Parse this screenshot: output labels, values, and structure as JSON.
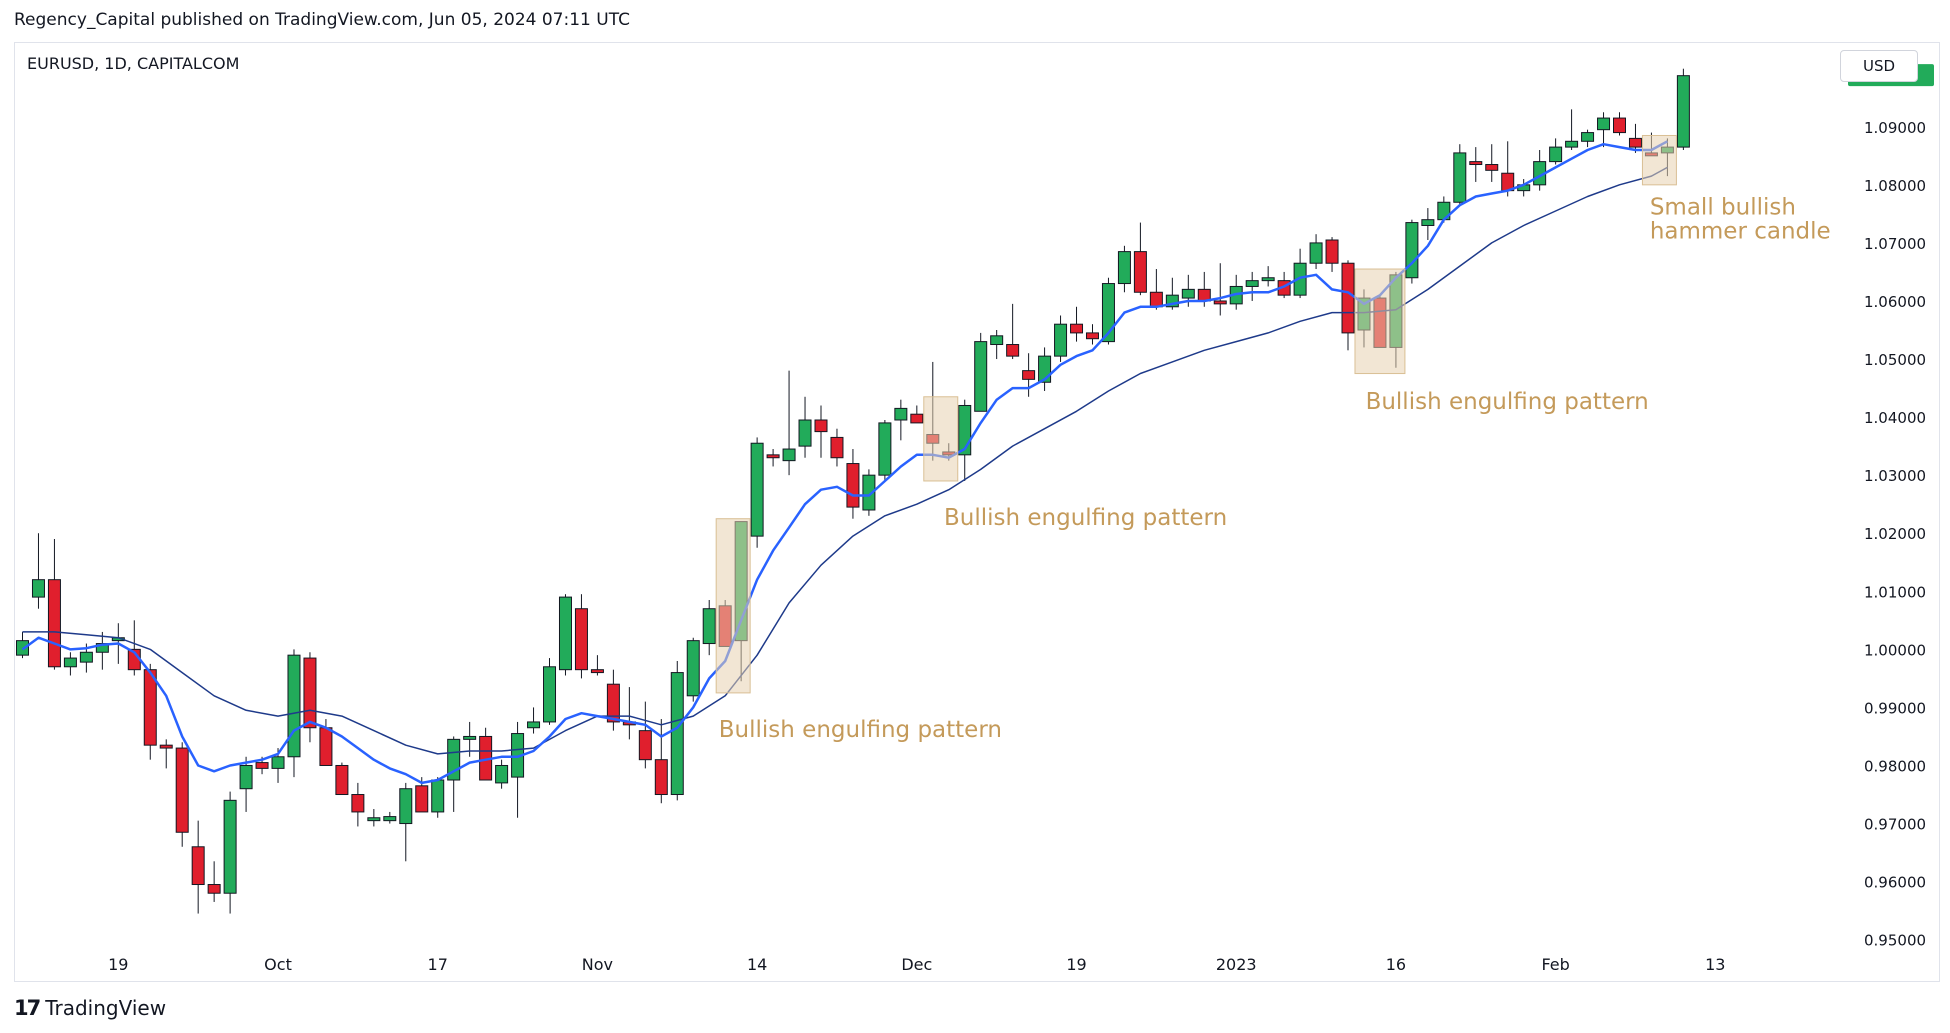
{
  "header": {
    "publisher_line": "Regency_Capital published on TradingView.com, Jun 05, 2024 07:11 UTC"
  },
  "chart_header": {
    "symbol": "EURUSD, 1D, CAPITALCOM",
    "currency": "USD"
  },
  "footer": {
    "logo_icon": "tradingview-logo-icon",
    "logo_text": "TradingView"
  },
  "chart_data": {
    "type": "candlestick",
    "symbol": "EURUSD",
    "timeframe": "1D",
    "y_axis": {
      "range": [
        0.9465,
        1.1015
      ],
      "ticks": [
        "0.95000",
        "0.96000",
        "0.97000",
        "0.98000",
        "0.99000",
        "1.00000",
        "1.01000",
        "1.02000",
        "1.03000",
        "1.04000",
        "1.05000",
        "1.06000",
        "1.07000",
        "1.08000",
        "1.09000"
      ],
      "last_price": "1.09889",
      "last_price_color": "#22ab5a"
    },
    "x_axis": {
      "ticks": [
        {
          "label": "19",
          "bar": 6
        },
        {
          "label": "Oct",
          "bar": 16
        },
        {
          "label": "17",
          "bar": 26
        },
        {
          "label": "Nov",
          "bar": 36
        },
        {
          "label": "14",
          "bar": 46
        },
        {
          "label": "Dec",
          "bar": 56
        },
        {
          "label": "19",
          "bar": 66
        },
        {
          "label": "2023",
          "bar": 76
        },
        {
          "label": "16",
          "bar": 86
        },
        {
          "label": "Feb",
          "bar": 96
        },
        {
          "label": "13",
          "bar": 106
        }
      ]
    },
    "colors": {
      "up": "#22ab5a",
      "down": "#e01f2d",
      "wick": "#131722",
      "ema_fast": "#2962ff",
      "ema_slow": "#1e3a8a",
      "annotation_text": "#c49a5a",
      "annotation_box": "#e8d2b0"
    },
    "candles": [
      {
        "o": 0.999,
        "h": 1.003,
        "l": 0.9985,
        "c": 1.0015
      },
      {
        "o": 1.009,
        "h": 1.02,
        "l": 1.007,
        "c": 1.012
      },
      {
        "o": 1.012,
        "h": 1.019,
        "l": 0.9965,
        "c": 0.997
      },
      {
        "o": 0.997,
        "h": 0.9995,
        "l": 0.9955,
        "c": 0.9985
      },
      {
        "o": 0.9978,
        "h": 1.001,
        "l": 0.996,
        "c": 0.9995
      },
      {
        "o": 0.9995,
        "h": 1.003,
        "l": 0.9965,
        "c": 1.001
      },
      {
        "o": 1.0015,
        "h": 1.0045,
        "l": 0.9975,
        "c": 1.002
      },
      {
        "o": 1.0,
        "h": 1.005,
        "l": 0.9955,
        "c": 0.9965
      },
      {
        "o": 0.9965,
        "h": 0.9975,
        "l": 0.981,
        "c": 0.9835
      },
      {
        "o": 0.9835,
        "h": 0.9845,
        "l": 0.9795,
        "c": 0.983
      },
      {
        "o": 0.983,
        "h": 0.984,
        "l": 0.966,
        "c": 0.9685
      },
      {
        "o": 0.966,
        "h": 0.9705,
        "l": 0.9545,
        "c": 0.9595
      },
      {
        "o": 0.9595,
        "h": 0.9635,
        "l": 0.9565,
        "c": 0.958
      },
      {
        "o": 0.958,
        "h": 0.9755,
        "l": 0.9545,
        "c": 0.974
      },
      {
        "o": 0.976,
        "h": 0.9815,
        "l": 0.972,
        "c": 0.98
      },
      {
        "o": 0.9805,
        "h": 0.9815,
        "l": 0.9785,
        "c": 0.9795
      },
      {
        "o": 0.9795,
        "h": 0.983,
        "l": 0.977,
        "c": 0.9815
      },
      {
        "o": 0.9815,
        "h": 1.0,
        "l": 0.978,
        "c": 0.999
      },
      {
        "o": 0.9985,
        "h": 0.9995,
        "l": 0.984,
        "c": 0.9865
      },
      {
        "o": 0.9865,
        "h": 0.988,
        "l": 0.9805,
        "c": 0.98
      },
      {
        "o": 0.98,
        "h": 0.9805,
        "l": 0.975,
        "c": 0.975
      },
      {
        "o": 0.975,
        "h": 0.977,
        "l": 0.9695,
        "c": 0.972
      },
      {
        "o": 0.9705,
        "h": 0.9725,
        "l": 0.9695,
        "c": 0.971
      },
      {
        "o": 0.9705,
        "h": 0.972,
        "l": 0.97,
        "c": 0.9712
      },
      {
        "o": 0.97,
        "h": 0.977,
        "l": 0.9635,
        "c": 0.976
      },
      {
        "o": 0.9765,
        "h": 0.978,
        "l": 0.972,
        "c": 0.972
      },
      {
        "o": 0.972,
        "h": 0.978,
        "l": 0.971,
        "c": 0.9775
      },
      {
        "o": 0.9775,
        "h": 0.985,
        "l": 0.972,
        "c": 0.9845
      },
      {
        "o": 0.9845,
        "h": 0.9875,
        "l": 0.9815,
        "c": 0.985
      },
      {
        "o": 0.985,
        "h": 0.9865,
        "l": 0.978,
        "c": 0.9775
      },
      {
        "o": 0.977,
        "h": 0.981,
        "l": 0.976,
        "c": 0.98
      },
      {
        "o": 0.978,
        "h": 0.9875,
        "l": 0.971,
        "c": 0.9855
      },
      {
        "o": 0.9865,
        "h": 0.99,
        "l": 0.9855,
        "c": 0.9875
      },
      {
        "o": 0.9875,
        "h": 0.9985,
        "l": 0.987,
        "c": 0.997
      },
      {
        "o": 0.9965,
        "h": 1.0095,
        "l": 0.9955,
        "c": 1.009
      },
      {
        "o": 1.007,
        "h": 1.0095,
        "l": 0.995,
        "c": 0.9965
      },
      {
        "o": 0.9965,
        "h": 0.999,
        "l": 0.9955,
        "c": 0.996
      },
      {
        "o": 0.994,
        "h": 0.9965,
        "l": 0.986,
        "c": 0.9875
      },
      {
        "o": 0.9875,
        "h": 0.9935,
        "l": 0.9845,
        "c": 0.987
      },
      {
        "o": 0.986,
        "h": 0.991,
        "l": 0.9795,
        "c": 0.981
      },
      {
        "o": 0.981,
        "h": 0.988,
        "l": 0.9735,
        "c": 0.975
      },
      {
        "o": 0.975,
        "h": 0.998,
        "l": 0.974,
        "c": 0.996
      },
      {
        "o": 0.992,
        "h": 1.002,
        "l": 0.991,
        "c": 1.0015
      },
      {
        "o": 1.001,
        "h": 1.0085,
        "l": 0.999,
        "c": 1.007
      },
      {
        "o": 1.0075,
        "h": 1.0085,
        "l": 1.0005,
        "c": 1.0005
      },
      {
        "o": 1.0015,
        "h": 1.022,
        "l": 0.9945,
        "c": 1.022
      },
      {
        "o": 1.0195,
        "h": 1.0365,
        "l": 1.0175,
        "c": 1.0355
      },
      {
        "o": 1.0335,
        "h": 1.0345,
        "l": 1.0315,
        "c": 1.033
      },
      {
        "o": 1.0325,
        "h": 1.048,
        "l": 1.03,
        "c": 1.0345
      },
      {
        "o": 1.035,
        "h": 1.0435,
        "l": 1.033,
        "c": 1.0395
      },
      {
        "o": 1.0395,
        "h": 1.042,
        "l": 1.033,
        "c": 1.0375
      },
      {
        "o": 1.0365,
        "h": 1.038,
        "l": 1.0315,
        "c": 1.033
      },
      {
        "o": 1.032,
        "h": 1.0345,
        "l": 1.0225,
        "c": 1.0245
      },
      {
        "o": 1.024,
        "h": 1.031,
        "l": 1.023,
        "c": 1.03
      },
      {
        "o": 1.03,
        "h": 1.0395,
        "l": 1.029,
        "c": 1.039
      },
      {
        "o": 1.0395,
        "h": 1.043,
        "l": 1.036,
        "c": 1.0415
      },
      {
        "o": 1.0405,
        "h": 1.042,
        "l": 1.039,
        "c": 1.039
      },
      {
        "o": 1.037,
        "h": 1.0495,
        "l": 1.0325,
        "c": 1.0355
      },
      {
        "o": 1.034,
        "h": 1.0355,
        "l": 1.0325,
        "c": 1.0335
      },
      {
        "o": 1.0335,
        "h": 1.043,
        "l": 1.029,
        "c": 1.042
      },
      {
        "o": 1.041,
        "h": 1.0545,
        "l": 1.041,
        "c": 1.053
      },
      {
        "o": 1.0525,
        "h": 1.055,
        "l": 1.05,
        "c": 1.054
      },
      {
        "o": 1.0525,
        "h": 1.0595,
        "l": 1.05,
        "c": 1.0505
      },
      {
        "o": 1.048,
        "h": 1.051,
        "l": 1.0435,
        "c": 1.0465
      },
      {
        "o": 1.046,
        "h": 1.052,
        "l": 1.0445,
        "c": 1.0505
      },
      {
        "o": 1.0505,
        "h": 1.0575,
        "l": 1.0495,
        "c": 1.056
      },
      {
        "o": 1.056,
        "h": 1.059,
        "l": 1.053,
        "c": 1.0545
      },
      {
        "o": 1.0545,
        "h": 1.056,
        "l": 1.0525,
        "c": 1.0535
      },
      {
        "o": 1.053,
        "h": 1.064,
        "l": 1.0525,
        "c": 1.063
      },
      {
        "o": 1.063,
        "h": 1.0695,
        "l": 1.0615,
        "c": 1.0685
      },
      {
        "o": 1.0685,
        "h": 1.0735,
        "l": 1.061,
        "c": 1.0615
      },
      {
        "o": 1.0615,
        "h": 1.0655,
        "l": 1.0585,
        "c": 1.059
      },
      {
        "o": 1.059,
        "h": 1.064,
        "l": 1.0585,
        "c": 1.061
      },
      {
        "o": 1.0605,
        "h": 1.0645,
        "l": 1.059,
        "c": 1.062
      },
      {
        "o": 1.062,
        "h": 1.065,
        "l": 1.059,
        "c": 1.06
      },
      {
        "o": 1.06,
        "h": 1.0665,
        "l": 1.0575,
        "c": 1.0595
      },
      {
        "o": 1.0595,
        "h": 1.0645,
        "l": 1.0585,
        "c": 1.0625
      },
      {
        "o": 1.0625,
        "h": 1.065,
        "l": 1.06,
        "c": 1.0635
      },
      {
        "o": 1.0635,
        "h": 1.066,
        "l": 1.0625,
        "c": 1.064
      },
      {
        "o": 1.0635,
        "h": 1.065,
        "l": 1.0605,
        "c": 1.061
      },
      {
        "o": 1.061,
        "h": 1.069,
        "l": 1.0605,
        "c": 1.0665
      },
      {
        "o": 1.0665,
        "h": 1.0715,
        "l": 1.0655,
        "c": 1.07
      },
      {
        "o": 1.0705,
        "h": 1.071,
        "l": 1.065,
        "c": 1.0665
      },
      {
        "o": 1.0665,
        "h": 1.067,
        "l": 1.0515,
        "c": 1.0545
      },
      {
        "o": 1.055,
        "h": 1.062,
        "l": 1.052,
        "c": 1.0605
      },
      {
        "o": 1.0605,
        "h": 1.061,
        "l": 1.0525,
        "c": 1.052
      },
      {
        "o": 1.052,
        "h": 1.065,
        "l": 1.0485,
        "c": 1.0645
      },
      {
        "o": 1.064,
        "h": 1.074,
        "l": 1.063,
        "c": 1.0735
      },
      {
        "o": 1.073,
        "h": 1.076,
        "l": 1.0705,
        "c": 1.074
      },
      {
        "o": 1.074,
        "h": 1.078,
        "l": 1.0735,
        "c": 1.077
      },
      {
        "o": 1.077,
        "h": 1.087,
        "l": 1.0765,
        "c": 1.0855
      },
      {
        "o": 1.084,
        "h": 1.0865,
        "l": 1.0805,
        "c": 1.0835
      },
      {
        "o": 1.0835,
        "h": 1.087,
        "l": 1.0805,
        "c": 1.0825
      },
      {
        "o": 1.082,
        "h": 1.0875,
        "l": 1.078,
        "c": 1.079
      },
      {
        "o": 1.079,
        "h": 1.081,
        "l": 1.078,
        "c": 1.08
      },
      {
        "o": 1.08,
        "h": 1.086,
        "l": 1.079,
        "c": 1.084
      },
      {
        "o": 1.084,
        "h": 1.088,
        "l": 1.0835,
        "c": 1.0865
      },
      {
        "o": 1.0865,
        "h": 1.093,
        "l": 1.086,
        "c": 1.0875
      },
      {
        "o": 1.0875,
        "h": 1.0895,
        "l": 1.0865,
        "c": 1.089
      },
      {
        "o": 1.0895,
        "h": 1.0925,
        "l": 1.0865,
        "c": 1.0915
      },
      {
        "o": 1.0915,
        "h": 1.0925,
        "l": 1.0885,
        "c": 1.089
      },
      {
        "o": 1.088,
        "h": 1.0905,
        "l": 1.0855,
        "c": 1.0865
      },
      {
        "o": 1.0855,
        "h": 1.089,
        "l": 1.085,
        "c": 1.085
      },
      {
        "o": 1.0855,
        "h": 1.088,
        "l": 1.0815,
        "c": 1.0865
      },
      {
        "o": 1.0865,
        "h": 1.1,
        "l": 1.086,
        "c": 1.0988
      }
    ],
    "ema_fast": [
      [
        0,
        1.0
      ],
      [
        1,
        1.002
      ],
      [
        2,
        1.001
      ],
      [
        3,
        1.0
      ],
      [
        4,
        1.0002
      ],
      [
        5,
        1.0008
      ],
      [
        6,
        1.001
      ],
      [
        7,
        0.9995
      ],
      [
        8,
        0.996
      ],
      [
        9,
        0.992
      ],
      [
        10,
        0.985
      ],
      [
        11,
        0.98
      ],
      [
        12,
        0.979
      ],
      [
        13,
        0.98
      ],
      [
        14,
        0.9805
      ],
      [
        15,
        0.981
      ],
      [
        16,
        0.982
      ],
      [
        17,
        0.986
      ],
      [
        18,
        0.9875
      ],
      [
        19,
        0.9865
      ],
      [
        20,
        0.985
      ],
      [
        21,
        0.983
      ],
      [
        22,
        0.981
      ],
      [
        23,
        0.9795
      ],
      [
        24,
        0.9785
      ],
      [
        25,
        0.977
      ],
      [
        26,
        0.9775
      ],
      [
        27,
        0.979
      ],
      [
        28,
        0.9805
      ],
      [
        29,
        0.981
      ],
      [
        30,
        0.9815
      ],
      [
        31,
        0.9815
      ],
      [
        32,
        0.9825
      ],
      [
        33,
        0.985
      ],
      [
        34,
        0.988
      ],
      [
        35,
        0.989
      ],
      [
        36,
        0.9885
      ],
      [
        37,
        0.988
      ],
      [
        38,
        0.9875
      ],
      [
        39,
        0.987
      ],
      [
        40,
        0.985
      ],
      [
        41,
        0.9865
      ],
      [
        42,
        0.99
      ],
      [
        43,
        0.995
      ],
      [
        44,
        0.998
      ],
      [
        45,
        1.005
      ],
      [
        46,
        1.012
      ],
      [
        47,
        1.017
      ],
      [
        48,
        1.021
      ],
      [
        49,
        1.025
      ],
      [
        50,
        1.0275
      ],
      [
        51,
        1.028
      ],
      [
        52,
        1.0265
      ],
      [
        53,
        1.0265
      ],
      [
        54,
        1.029
      ],
      [
        55,
        1.0315
      ],
      [
        56,
        1.0335
      ],
      [
        57,
        1.0335
      ],
      [
        58,
        1.033
      ],
      [
        59,
        1.0345
      ],
      [
        60,
        1.039
      ],
      [
        61,
        1.043
      ],
      [
        62,
        1.045
      ],
      [
        63,
        1.045
      ],
      [
        64,
        1.0465
      ],
      [
        65,
        1.049
      ],
      [
        66,
        1.0505
      ],
      [
        67,
        1.0515
      ],
      [
        68,
        1.0545
      ],
      [
        69,
        1.058
      ],
      [
        70,
        1.059
      ],
      [
        71,
        1.059
      ],
      [
        72,
        1.0595
      ],
      [
        73,
        1.06
      ],
      [
        74,
        1.06
      ],
      [
        75,
        1.0605
      ],
      [
        76,
        1.0612
      ],
      [
        77,
        1.0615
      ],
      [
        78,
        1.0615
      ],
      [
        79,
        1.0625
      ],
      [
        80,
        1.064
      ],
      [
        81,
        1.0645
      ],
      [
        82,
        1.062
      ],
      [
        83,
        1.0615
      ],
      [
        84,
        1.0595
      ],
      [
        85,
        1.061
      ],
      [
        86,
        1.064
      ],
      [
        87,
        1.0665
      ],
      [
        88,
        1.0695
      ],
      [
        89,
        1.074
      ],
      [
        90,
        1.0765
      ],
      [
        91,
        1.078
      ],
      [
        92,
        1.0785
      ],
      [
        93,
        1.079
      ],
      [
        94,
        1.08
      ],
      [
        95,
        1.0815
      ],
      [
        96,
        1.083
      ],
      [
        97,
        1.0845
      ],
      [
        98,
        1.086
      ],
      [
        99,
        1.087
      ],
      [
        100,
        1.0865
      ],
      [
        101,
        1.086
      ],
      [
        102,
        1.086
      ],
      [
        103,
        1.0875
      ]
    ],
    "ema_slow": [
      [
        0,
        1.003
      ],
      [
        2,
        1.003
      ],
      [
        4,
        1.0025
      ],
      [
        6,
        1.002
      ],
      [
        8,
        1.0
      ],
      [
        10,
        0.996
      ],
      [
        12,
        0.992
      ],
      [
        14,
        0.9895
      ],
      [
        16,
        0.9885
      ],
      [
        18,
        0.9895
      ],
      [
        20,
        0.9885
      ],
      [
        22,
        0.986
      ],
      [
        24,
        0.9835
      ],
      [
        26,
        0.982
      ],
      [
        28,
        0.9825
      ],
      [
        30,
        0.9825
      ],
      [
        32,
        0.983
      ],
      [
        34,
        0.986
      ],
      [
        36,
        0.9885
      ],
      [
        38,
        0.9885
      ],
      [
        40,
        0.987
      ],
      [
        42,
        0.9885
      ],
      [
        44,
        0.992
      ],
      [
        46,
        0.999
      ],
      [
        48,
        1.008
      ],
      [
        50,
        1.0145
      ],
      [
        52,
        1.0195
      ],
      [
        54,
        1.023
      ],
      [
        56,
        1.025
      ],
      [
        58,
        1.0275
      ],
      [
        60,
        1.031
      ],
      [
        62,
        1.035
      ],
      [
        64,
        1.038
      ],
      [
        66,
        1.041
      ],
      [
        68,
        1.0445
      ],
      [
        70,
        1.0475
      ],
      [
        72,
        1.0495
      ],
      [
        74,
        1.0515
      ],
      [
        76,
        1.053
      ],
      [
        78,
        1.0545
      ],
      [
        80,
        1.0565
      ],
      [
        82,
        1.058
      ],
      [
        84,
        1.058
      ],
      [
        86,
        1.0585
      ],
      [
        88,
        1.062
      ],
      [
        90,
        1.066
      ],
      [
        92,
        1.07
      ],
      [
        94,
        1.073
      ],
      [
        96,
        1.0755
      ],
      [
        98,
        1.078
      ],
      [
        100,
        1.08
      ],
      [
        102,
        1.0815
      ],
      [
        103,
        1.083
      ]
    ],
    "annotations": [
      {
        "text": "Bullish engulfing pattern",
        "bar_start": 44,
        "bar_end": 45,
        "price_high": 1.0225,
        "price_low": 0.9925,
        "label_bar": 43.6,
        "label_price": 0.988
      },
      {
        "text": "Bullish engulfing pattern",
        "bar_start": 57,
        "bar_end": 58,
        "price_high": 1.0435,
        "price_low": 1.029,
        "label_bar": 57.7,
        "label_price": 1.0245
      },
      {
        "text": "Bullish engulfing pattern",
        "bar_start": 84,
        "bar_end": 86,
        "price_high": 1.0655,
        "price_low": 1.0475,
        "label_bar": 84.1,
        "label_price": 1.0445
      },
      {
        "lines": [
          "Small bullish",
          "hammer candle"
        ],
        "bar_start": 102,
        "bar_end": 103,
        "price_high": 1.0885,
        "price_low": 1.08,
        "label_bar": 101.9,
        "label_price": 1.078
      }
    ]
  }
}
